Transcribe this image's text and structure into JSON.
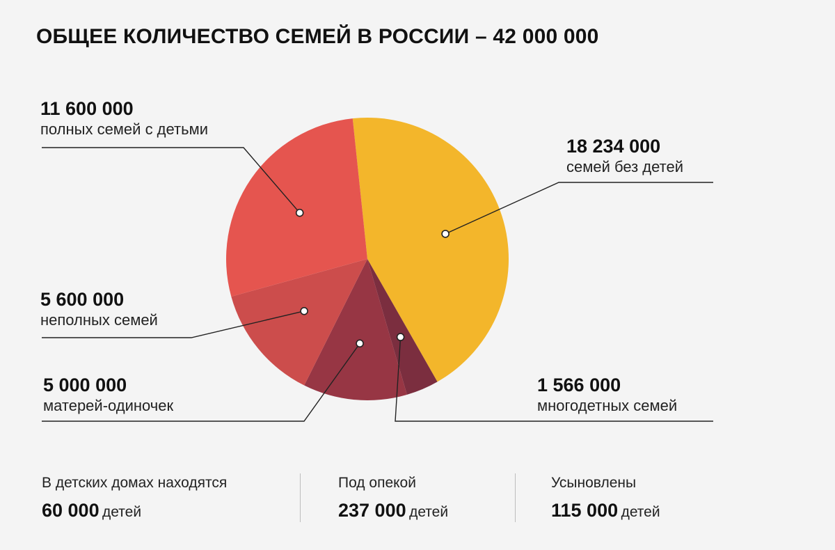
{
  "title": "ОБЩЕЕ КОЛИЧЕСТВО СЕМЕЙ В РОССИИ – 42 000 000",
  "chart_data": {
    "type": "pie",
    "title": "ОБЩЕЕ КОЛИЧЕСТВО СЕМЕЙ В РОССИИ – 42 000 000",
    "total": 42000000,
    "slices": [
      {
        "key": "no-children",
        "value": 18234000,
        "value_label": "18 234 000",
        "label": "семей без детей",
        "color": "#f3b62b"
      },
      {
        "key": "large-families",
        "value": 1566000,
        "value_label": "1 566 000",
        "label": "многодетных семей",
        "color": "#7b2e3f"
      },
      {
        "key": "single-mothers",
        "value": 5000000,
        "value_label": "5 000 000",
        "label": "матерей-одиночек",
        "color": "#973644"
      },
      {
        "key": "single-parent",
        "value": 5600000,
        "value_label": "5 600 000",
        "label": "неполных семей",
        "color": "#cc4d4c"
      },
      {
        "key": "full-with-children",
        "value": 11600000,
        "value_label": "11 600 000",
        "label": "полных семей с детьми",
        "color": "#e5554f"
      }
    ]
  },
  "stats": [
    {
      "caption": "В детских домах находятся",
      "value": "60 000",
      "unit": "детей"
    },
    {
      "caption": "Под опекой",
      "value": "237 000",
      "unit": "детей"
    },
    {
      "caption": "Усыновлены",
      "value": "115 000",
      "unit": "детей"
    }
  ],
  "colors": {
    "background": "#f4f4f4",
    "text": "#111111",
    "leader": "#222222"
  }
}
